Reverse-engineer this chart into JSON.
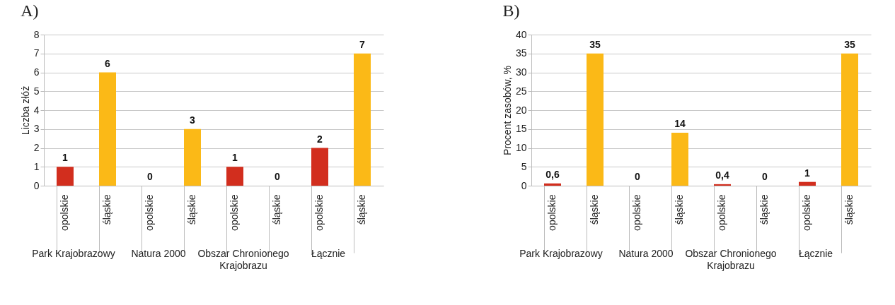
{
  "chart_data": [
    {
      "type": "bar",
      "title": "A)",
      "ylabel": "Liczba złóż",
      "categories": [
        "opolskie",
        "śląskie",
        "opolskie",
        "śląskie",
        "opolskie",
        "śląskie",
        "opolskie",
        "śląskie"
      ],
      "values": [
        1,
        6,
        0,
        3,
        1,
        0,
        2,
        7
      ],
      "value_labels": [
        "1",
        "6",
        "0",
        "3",
        "1",
        "0",
        "2",
        "7"
      ],
      "colors": [
        "#d22e1e",
        "#fbb917",
        "#d22e1e",
        "#fbb917",
        "#d22e1e",
        "#fbb917",
        "#d22e1e",
        "#fbb917"
      ],
      "annotations": [
        "Park Krajobrazowy",
        "Natura 2000",
        "Obszar Chronionego Krajobrazu",
        "Łącznie"
      ],
      "ylim": [
        0,
        8
      ],
      "yticks": [
        0,
        1,
        2,
        3,
        4,
        5,
        6,
        7,
        8
      ],
      "grid": true
    },
    {
      "type": "bar",
      "title": "B)",
      "ylabel": "Procent zasobów, %",
      "categories": [
        "opolskie",
        "śląskie",
        "opolskie",
        "śląskie",
        "opolskie",
        "śląskie",
        "opolskie",
        "śląskie"
      ],
      "values": [
        0.6,
        35,
        0,
        14,
        0.4,
        0,
        1,
        35
      ],
      "value_labels": [
        "0,6",
        "35",
        "0",
        "14",
        "0,4",
        "0",
        "1",
        "35"
      ],
      "colors": [
        "#d22e1e",
        "#fbb917",
        "#d22e1e",
        "#fbb917",
        "#d22e1e",
        "#fbb917",
        "#d22e1e",
        "#fbb917"
      ],
      "annotations": [
        "Park Krajobrazowy",
        "Natura 2000",
        "Obszar Chronionego Krajobrazu",
        "Łącznie"
      ],
      "ylim": [
        0,
        40
      ],
      "yticks": [
        0,
        5,
        10,
        15,
        20,
        25,
        30,
        35,
        40
      ],
      "grid": true
    }
  ]
}
